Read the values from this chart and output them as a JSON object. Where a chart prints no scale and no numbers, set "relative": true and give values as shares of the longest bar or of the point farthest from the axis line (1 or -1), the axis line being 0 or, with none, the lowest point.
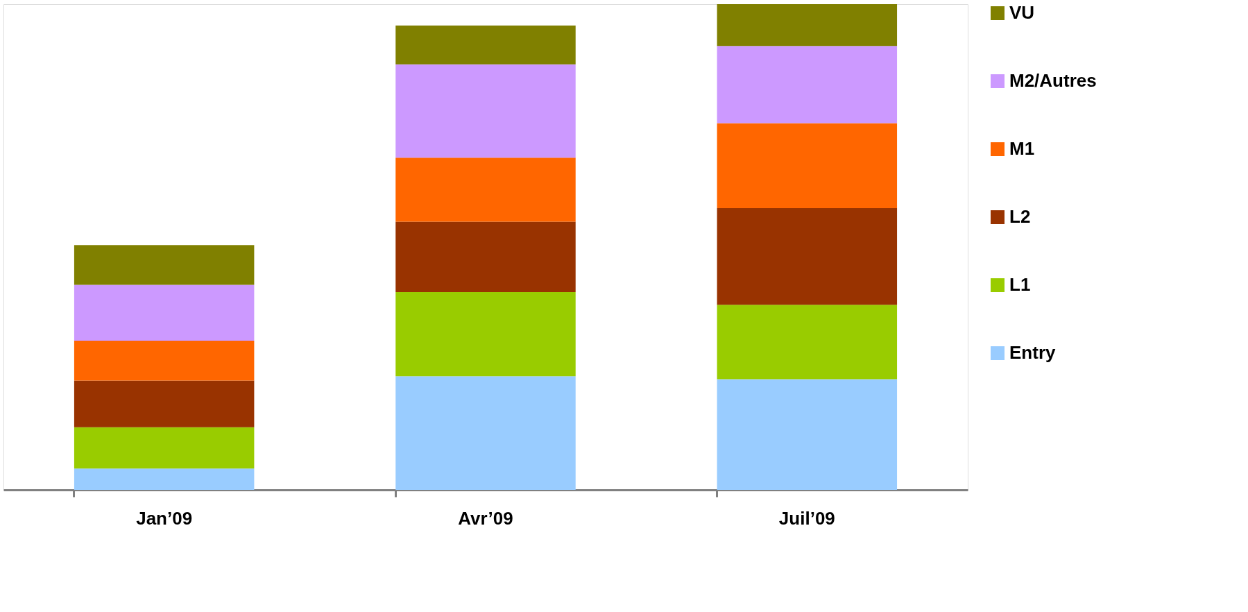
{
  "chart_data": {
    "type": "bar",
    "stacked": true,
    "relative": true,
    "legend": "right",
    "categories": [
      "Jan’09",
      "Avr’09",
      "Juil’09"
    ],
    "series": [
      {
        "name": "Entry",
        "color": "#99ccff",
        "values": [
          0.044,
          0.234,
          0.228
        ]
      },
      {
        "name": "L1",
        "color": "#99cc00",
        "values": [
          0.085,
          0.173,
          0.153
        ]
      },
      {
        "name": "L2",
        "color": "#993300",
        "values": [
          0.096,
          0.145,
          0.199
        ]
      },
      {
        "name": "M1",
        "color": "#ff6600",
        "values": [
          0.082,
          0.132,
          0.175
        ]
      },
      {
        "name": "M2/Autres",
        "color": "#cc99ff",
        "values": [
          0.115,
          0.192,
          0.159
        ]
      },
      {
        "name": "VU",
        "color": "#808000",
        "values": [
          0.082,
          0.08,
          0.086
        ]
      }
    ]
  }
}
